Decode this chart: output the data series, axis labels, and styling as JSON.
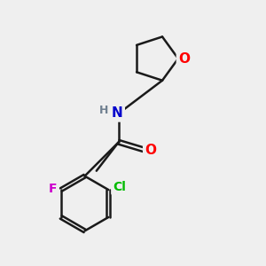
{
  "background_color": "#efefef",
  "bond_color": "#1a1a1a",
  "atom_colors": {
    "O": "#ff0000",
    "N": "#0000cc",
    "F": "#cc00cc",
    "Cl": "#00bb00",
    "H": "#708090"
  },
  "figsize": [
    3.0,
    3.0
  ],
  "dpi": 100
}
